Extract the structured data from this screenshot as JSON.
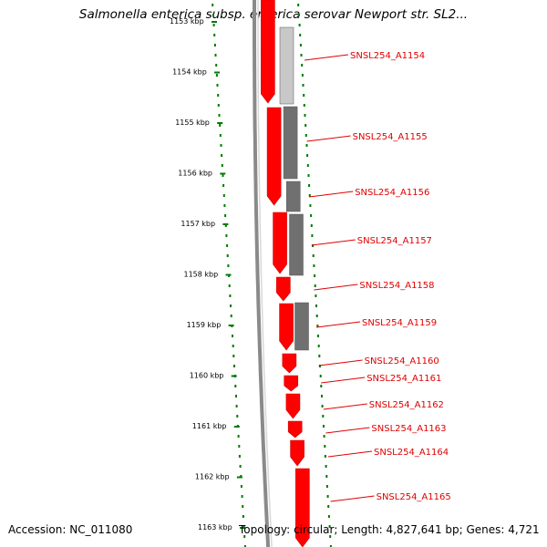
{
  "title": "Salmonella enterica subsp. enterica serovar Newport str. SL2...",
  "footer": {
    "accession": "Accession: NC_011080",
    "info": "Topology: circular; Length: 4,827,641 bp; Genes: 4,721"
  },
  "colors": {
    "cds_red": "#ff0000",
    "cds_red_dark": "#d00000",
    "gene_label": "#e00000",
    "feature_gray": "#707070",
    "feature_light_gray": "#c8c8c8",
    "tick_green": "#007a00",
    "backbone_gray": "#8a8a8a"
  },
  "ruler": {
    "unit": "kbp",
    "ticks": [
      1153,
      1154,
      1155,
      1156,
      1157,
      1158,
      1159,
      1160,
      1161,
      1162,
      1163
    ],
    "labels": [
      "1153 kbp",
      "1154 kbp",
      "1155 kbp",
      "1156 kbp",
      "1157 kbp",
      "1158 kbp",
      "1159 kbp",
      "1160 kbp",
      "1161 kbp",
      "1162 kbp",
      "1163 kbp"
    ]
  },
  "genes": [
    "SNSL254_A1154",
    "SNSL254_A1155",
    "SNSL254_A1156",
    "SNSL254_A1157",
    "SNSL254_A1158",
    "SNSL254_A1159",
    "SNSL254_A1160",
    "SNSL254_A1161",
    "SNSL254_A1162",
    "SNSL254_A1163",
    "SNSL254_A1164",
    "SNSL254_A1165"
  ]
}
